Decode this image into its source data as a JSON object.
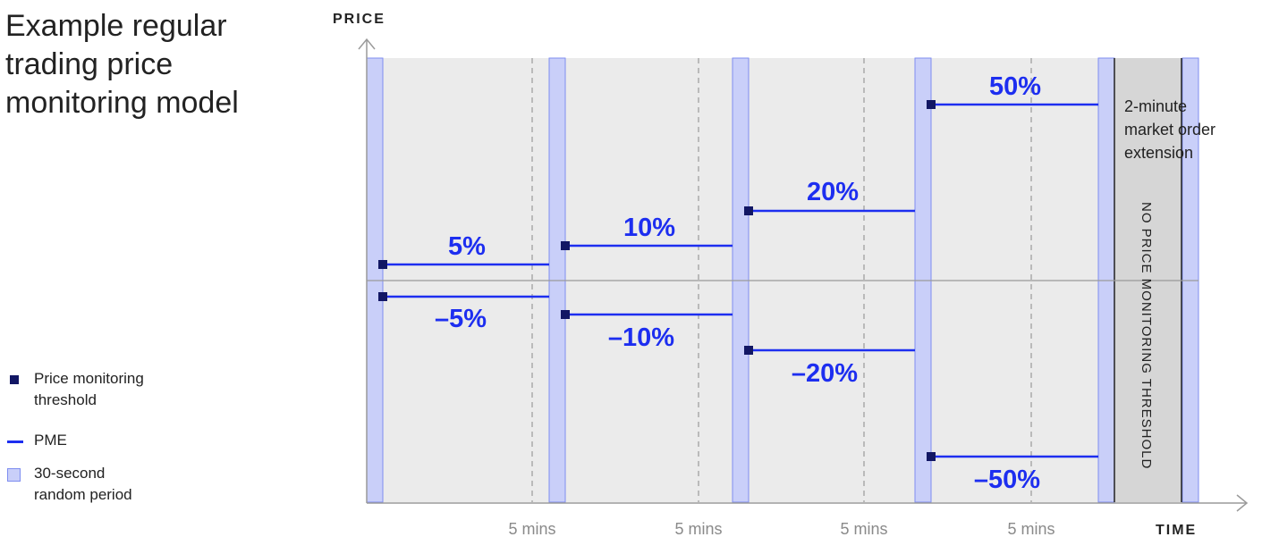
{
  "title": "Example regular trading price monitoring model",
  "axes": {
    "y_title": "PRICE",
    "x_title": "TIME",
    "ticks": [
      "5 mins",
      "5 mins",
      "5 mins",
      "5 mins"
    ]
  },
  "thresholds": [
    {
      "upper": "5%",
      "lower": "–5%"
    },
    {
      "upper": "10%",
      "lower": "–10%"
    },
    {
      "upper": "20%",
      "lower": "–20%"
    },
    {
      "upper": "50%",
      "lower": "–50%"
    }
  ],
  "extension_label": [
    "2-minute",
    "market order",
    "extension"
  ],
  "no_monitoring_label": "NO PRICE MONITORING THRESHOLD",
  "legend": {
    "threshold": [
      "Price monitoring",
      "threshold"
    ],
    "pme": "PME",
    "random_period": [
      "30-second",
      "random period"
    ]
  },
  "colors": {
    "pme_line": "#1d2ef0",
    "threshold_marker": "#121764",
    "random_period_fill": "#c9cff9",
    "random_period_border": "#7f8ef0",
    "background": "#ebebeb",
    "no_monitoring_fill": "#d6d6d6"
  }
}
